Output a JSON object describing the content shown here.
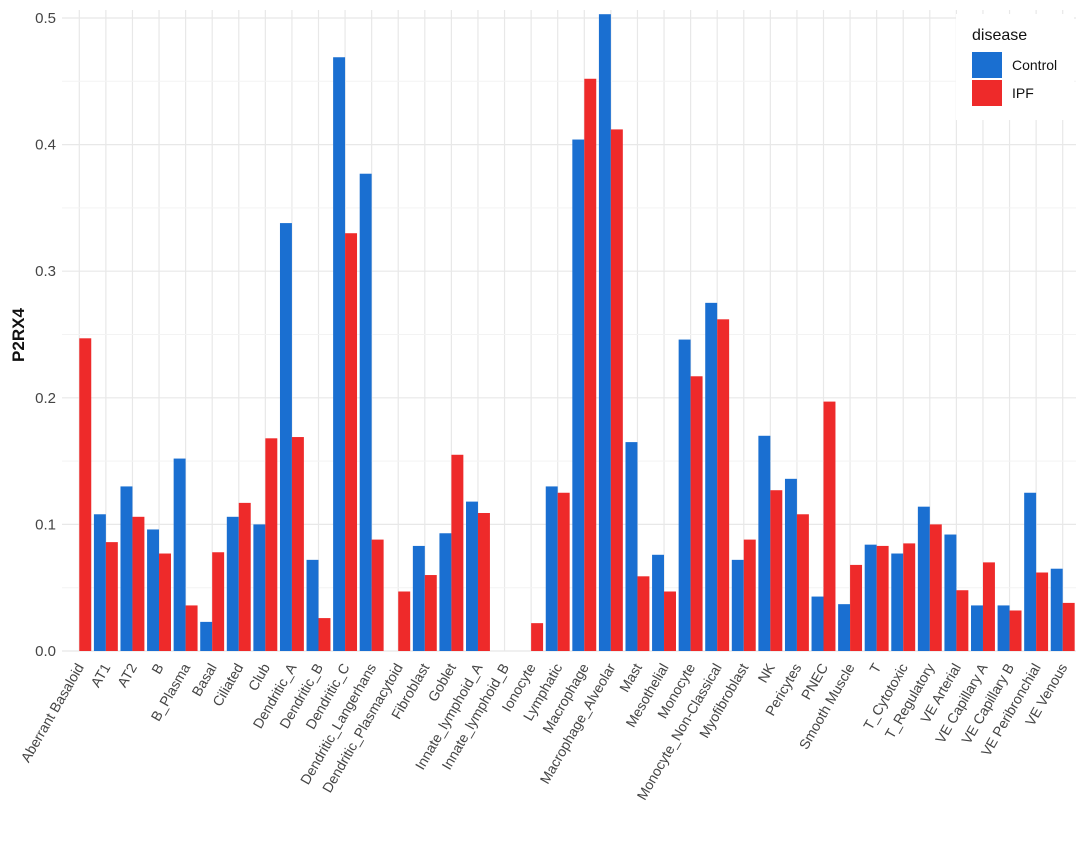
{
  "chart_data": {
    "type": "bar",
    "title": "",
    "xlabel": "",
    "ylabel": "P2RX4",
    "ylim": [
      0,
      0.5
    ],
    "yticks": [
      "0.0",
      "0.1",
      "0.2",
      "0.3",
      "0.4",
      "0.5"
    ],
    "categories": [
      "Aberrant Basaloid",
      "AT1",
      "AT2",
      "B",
      "B_Plasma",
      "Basal",
      "Ciliated",
      "Club",
      "Dendritic_A",
      "Dendritic_B",
      "Dendritic_C",
      "Dendritic_Langerhans",
      "Dendritic_Plasmacytoid",
      "Fibroblast",
      "Goblet",
      "Innate_lymphoid_A",
      "Innate_lymphoid_B",
      "Ionocyte",
      "Lymphatic",
      "Macrophage",
      "Macrophage_Alveolar",
      "Mast",
      "Mesothelial",
      "Monocyte",
      "Monocyte_Non-Classical",
      "Myofibroblast",
      "NK",
      "Pericytes",
      "PNEC",
      "Smooth Muscle",
      "T",
      "T_Cytotoxic",
      "T_Regulatory",
      "VE Arterial",
      "VE Capillary A",
      "VE Capillary B",
      "VE Peribronchial",
      "VE Venous"
    ],
    "series": [
      {
        "name": "Control",
        "color": "#1a6fd1",
        "values": [
          null,
          0.108,
          0.13,
          0.096,
          0.152,
          0.023,
          0.106,
          0.1,
          0.338,
          0.072,
          0.469,
          0.377,
          null,
          0.083,
          0.093,
          0.118,
          null,
          null,
          0.13,
          0.404,
          0.503,
          0.165,
          0.076,
          0.246,
          0.275,
          0.072,
          0.17,
          0.136,
          0.043,
          0.037,
          0.084,
          0.077,
          0.114,
          0.092,
          0.036,
          0.036,
          0.125,
          0.065
        ]
      },
      {
        "name": "IPF",
        "color": "#ee2a2a",
        "values": [
          0.247,
          0.086,
          0.106,
          0.077,
          0.036,
          0.078,
          0.117,
          0.168,
          0.169,
          0.026,
          0.33,
          0.088,
          0.047,
          0.06,
          0.155,
          0.109,
          null,
          0.022,
          0.125,
          0.452,
          0.412,
          0.059,
          0.047,
          0.217,
          0.262,
          0.088,
          0.127,
          0.108,
          0.197,
          0.068,
          0.083,
          0.085,
          0.1,
          0.048,
          0.07,
          0.032,
          0.062,
          0.038
        ]
      }
    ],
    "legend": {
      "title": "disease",
      "position": "top-right"
    },
    "grid": true
  }
}
